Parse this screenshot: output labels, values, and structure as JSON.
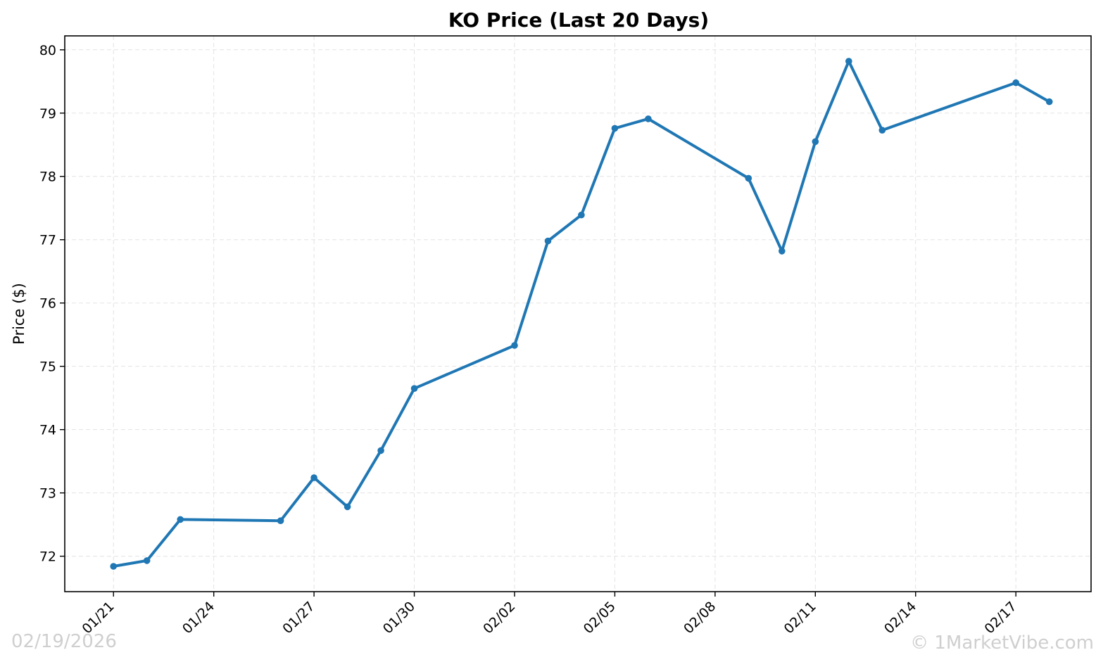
{
  "chart_data": {
    "type": "line",
    "title": "KO Price (Last 20 Days)",
    "xlabel": "",
    "ylabel": "Price ($)",
    "x_ticks": [
      "01/21",
      "01/24",
      "01/27",
      "01/30",
      "02/02",
      "02/05",
      "02/08",
      "02/11",
      "02/14",
      "02/17"
    ],
    "y_ticks": [
      72,
      73,
      74,
      75,
      76,
      77,
      78,
      79,
      80
    ],
    "xlim": [
      "2026-01-19 13:00",
      "2026-02-19 06:00"
    ],
    "ylim": [
      71.44,
      80.22
    ],
    "grid": true,
    "series": [
      {
        "name": "",
        "color": "#1f77b4",
        "marker": "circle",
        "points": [
          {
            "date": "2026-01-21",
            "value": 71.84
          },
          {
            "date": "2026-01-22",
            "value": 71.93
          },
          {
            "date": "2026-01-23",
            "value": 72.58
          },
          {
            "date": "2026-01-26",
            "value": 72.56
          },
          {
            "date": "2026-01-27",
            "value": 73.24
          },
          {
            "date": "2026-01-28",
            "value": 72.78
          },
          {
            "date": "2026-01-29",
            "value": 73.67
          },
          {
            "date": "2026-01-30",
            "value": 74.65
          },
          {
            "date": "2026-02-02",
            "value": 75.33
          },
          {
            "date": "2026-02-03",
            "value": 76.98
          },
          {
            "date": "2026-02-04",
            "value": 77.39
          },
          {
            "date": "2026-02-05",
            "value": 78.76
          },
          {
            "date": "2026-02-06",
            "value": 78.91
          },
          {
            "date": "2026-02-09",
            "value": 77.97
          },
          {
            "date": "2026-02-10",
            "value": 76.82
          },
          {
            "date": "2026-02-11",
            "value": 78.55
          },
          {
            "date": "2026-02-12",
            "value": 79.82
          },
          {
            "date": "2026-02-13",
            "value": 78.73
          },
          {
            "date": "2026-02-17",
            "value": 79.48
          },
          {
            "date": "2026-02-18",
            "value": 79.18
          }
        ]
      }
    ]
  },
  "footer": {
    "date_stamp": "02/19/2026",
    "copyright": "© 1MarketVibe.com"
  }
}
